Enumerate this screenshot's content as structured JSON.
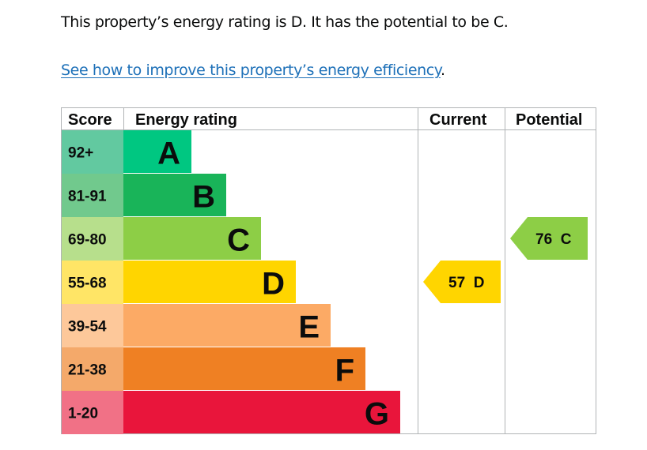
{
  "intro_text": "This property’s energy rating is D. It has the potential to be C.",
  "improve_link": "See how to improve this property’s energy efficiency",
  "improve_suffix": ".",
  "chart_data": {
    "type": "bar",
    "columns": {
      "score": "Score",
      "rating": "Energy rating",
      "current": "Current",
      "potential": "Potential"
    },
    "bands": [
      {
        "letter": "A",
        "range": "92+",
        "color": "#00c781",
        "score_color": "#62c9a0"
      },
      {
        "letter": "B",
        "range": "81-91",
        "color": "#19b459",
        "score_color": "#71c98d"
      },
      {
        "letter": "C",
        "range": "69-80",
        "color": "#8dce46",
        "score_color": "#b7df8c"
      },
      {
        "letter": "D",
        "range": "55-68",
        "color": "#ffd500",
        "score_color": "#ffe566"
      },
      {
        "letter": "E",
        "range": "39-54",
        "color": "#fcaa65",
        "score_color": "#fdc89a"
      },
      {
        "letter": "F",
        "range": "21-38",
        "color": "#ef8023",
        "score_color": "#f4a96a"
      },
      {
        "letter": "G",
        "range": "1-20",
        "color": "#e9153b",
        "score_color": "#f17186"
      }
    ],
    "current": {
      "score": 57,
      "letter": "D",
      "label": "57 D",
      "color": "#ffd500"
    },
    "potential": {
      "score": 76,
      "letter": "C",
      "label": "76 C",
      "color": "#8dce46"
    }
  }
}
